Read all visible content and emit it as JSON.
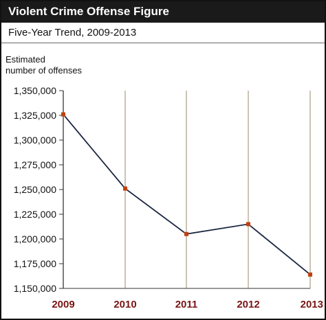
{
  "header": {
    "title": "Violent Crime Offense Figure",
    "subtitle": "Five-Year Trend, 2009-2013"
  },
  "chart_data": {
    "type": "line",
    "title": "Violent Crime Offense Figure",
    "subtitle": "Five-Year Trend, 2009-2013",
    "ylabel_lines": [
      "Estimated",
      "number of offenses"
    ],
    "xlabel": "",
    "categories": [
      "2009",
      "2010",
      "2011",
      "2012",
      "2013"
    ],
    "series": [
      {
        "values": [
          1326000,
          1251000,
          1205000,
          1215000,
          1164000
        ]
      }
    ],
    "ylim": [
      1150000,
      1350000
    ],
    "yticks": [
      1150000,
      1175000,
      1200000,
      1225000,
      1250000,
      1275000,
      1300000,
      1325000,
      1350000
    ],
    "ytick_labels": [
      "1,150,000",
      "1,175,000",
      "1,200,000",
      "1,225,000",
      "1,250,000",
      "1,275,000",
      "1,300,000",
      "1,325,000",
      "1,350,000"
    ],
    "grid": "vertical lines at categories",
    "legend": "none",
    "colors": {
      "line": "#1a2540",
      "marker": "#c0410f",
      "gridline": "#a89c84",
      "category_label": "#7a1414"
    }
  }
}
